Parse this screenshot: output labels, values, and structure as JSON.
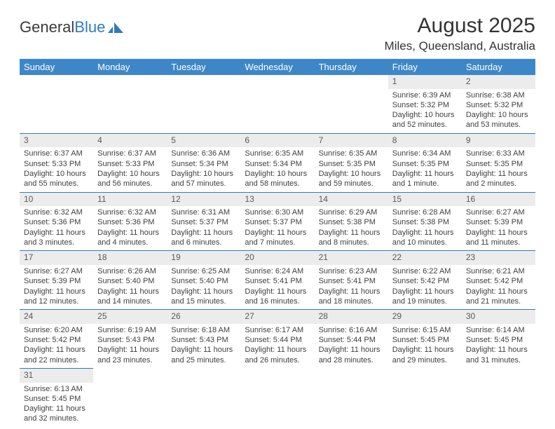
{
  "logo": {
    "part1": "General",
    "part2": "Blue"
  },
  "title": "August 2025",
  "location": "Miles, Queensland, Australia",
  "headers": [
    "Sunday",
    "Monday",
    "Tuesday",
    "Wednesday",
    "Thursday",
    "Friday",
    "Saturday"
  ],
  "colors": {
    "header_bg": "#3d87c9",
    "header_fg": "#ffffff",
    "daynum_bg": "#ececec",
    "divider": "#2f7bbf",
    "logo_blue": "#2f7bbf"
  },
  "weeks": [
    [
      null,
      null,
      null,
      null,
      null,
      {
        "n": "1",
        "sr": "Sunrise: 6:39 AM",
        "ss": "Sunset: 5:32 PM",
        "dl": "Daylight: 10 hours and 52 minutes."
      },
      {
        "n": "2",
        "sr": "Sunrise: 6:38 AM",
        "ss": "Sunset: 5:32 PM",
        "dl": "Daylight: 10 hours and 53 minutes."
      }
    ],
    [
      {
        "n": "3",
        "sr": "Sunrise: 6:37 AM",
        "ss": "Sunset: 5:33 PM",
        "dl": "Daylight: 10 hours and 55 minutes."
      },
      {
        "n": "4",
        "sr": "Sunrise: 6:37 AM",
        "ss": "Sunset: 5:33 PM",
        "dl": "Daylight: 10 hours and 56 minutes."
      },
      {
        "n": "5",
        "sr": "Sunrise: 6:36 AM",
        "ss": "Sunset: 5:34 PM",
        "dl": "Daylight: 10 hours and 57 minutes."
      },
      {
        "n": "6",
        "sr": "Sunrise: 6:35 AM",
        "ss": "Sunset: 5:34 PM",
        "dl": "Daylight: 10 hours and 58 minutes."
      },
      {
        "n": "7",
        "sr": "Sunrise: 6:35 AM",
        "ss": "Sunset: 5:35 PM",
        "dl": "Daylight: 10 hours and 59 minutes."
      },
      {
        "n": "8",
        "sr": "Sunrise: 6:34 AM",
        "ss": "Sunset: 5:35 PM",
        "dl": "Daylight: 11 hours and 1 minute."
      },
      {
        "n": "9",
        "sr": "Sunrise: 6:33 AM",
        "ss": "Sunset: 5:35 PM",
        "dl": "Daylight: 11 hours and 2 minutes."
      }
    ],
    [
      {
        "n": "10",
        "sr": "Sunrise: 6:32 AM",
        "ss": "Sunset: 5:36 PM",
        "dl": "Daylight: 11 hours and 3 minutes."
      },
      {
        "n": "11",
        "sr": "Sunrise: 6:32 AM",
        "ss": "Sunset: 5:36 PM",
        "dl": "Daylight: 11 hours and 4 minutes."
      },
      {
        "n": "12",
        "sr": "Sunrise: 6:31 AM",
        "ss": "Sunset: 5:37 PM",
        "dl": "Daylight: 11 hours and 6 minutes."
      },
      {
        "n": "13",
        "sr": "Sunrise: 6:30 AM",
        "ss": "Sunset: 5:37 PM",
        "dl": "Daylight: 11 hours and 7 minutes."
      },
      {
        "n": "14",
        "sr": "Sunrise: 6:29 AM",
        "ss": "Sunset: 5:38 PM",
        "dl": "Daylight: 11 hours and 8 minutes."
      },
      {
        "n": "15",
        "sr": "Sunrise: 6:28 AM",
        "ss": "Sunset: 5:38 PM",
        "dl": "Daylight: 11 hours and 10 minutes."
      },
      {
        "n": "16",
        "sr": "Sunrise: 6:27 AM",
        "ss": "Sunset: 5:39 PM",
        "dl": "Daylight: 11 hours and 11 minutes."
      }
    ],
    [
      {
        "n": "17",
        "sr": "Sunrise: 6:27 AM",
        "ss": "Sunset: 5:39 PM",
        "dl": "Daylight: 11 hours and 12 minutes."
      },
      {
        "n": "18",
        "sr": "Sunrise: 6:26 AM",
        "ss": "Sunset: 5:40 PM",
        "dl": "Daylight: 11 hours and 14 minutes."
      },
      {
        "n": "19",
        "sr": "Sunrise: 6:25 AM",
        "ss": "Sunset: 5:40 PM",
        "dl": "Daylight: 11 hours and 15 minutes."
      },
      {
        "n": "20",
        "sr": "Sunrise: 6:24 AM",
        "ss": "Sunset: 5:41 PM",
        "dl": "Daylight: 11 hours and 16 minutes."
      },
      {
        "n": "21",
        "sr": "Sunrise: 6:23 AM",
        "ss": "Sunset: 5:41 PM",
        "dl": "Daylight: 11 hours and 18 minutes."
      },
      {
        "n": "22",
        "sr": "Sunrise: 6:22 AM",
        "ss": "Sunset: 5:42 PM",
        "dl": "Daylight: 11 hours and 19 minutes."
      },
      {
        "n": "23",
        "sr": "Sunrise: 6:21 AM",
        "ss": "Sunset: 5:42 PM",
        "dl": "Daylight: 11 hours and 21 minutes."
      }
    ],
    [
      {
        "n": "24",
        "sr": "Sunrise: 6:20 AM",
        "ss": "Sunset: 5:42 PM",
        "dl": "Daylight: 11 hours and 22 minutes."
      },
      {
        "n": "25",
        "sr": "Sunrise: 6:19 AM",
        "ss": "Sunset: 5:43 PM",
        "dl": "Daylight: 11 hours and 23 minutes."
      },
      {
        "n": "26",
        "sr": "Sunrise: 6:18 AM",
        "ss": "Sunset: 5:43 PM",
        "dl": "Daylight: 11 hours and 25 minutes."
      },
      {
        "n": "27",
        "sr": "Sunrise: 6:17 AM",
        "ss": "Sunset: 5:44 PM",
        "dl": "Daylight: 11 hours and 26 minutes."
      },
      {
        "n": "28",
        "sr": "Sunrise: 6:16 AM",
        "ss": "Sunset: 5:44 PM",
        "dl": "Daylight: 11 hours and 28 minutes."
      },
      {
        "n": "29",
        "sr": "Sunrise: 6:15 AM",
        "ss": "Sunset: 5:45 PM",
        "dl": "Daylight: 11 hours and 29 minutes."
      },
      {
        "n": "30",
        "sr": "Sunrise: 6:14 AM",
        "ss": "Sunset: 5:45 PM",
        "dl": "Daylight: 11 hours and 31 minutes."
      }
    ],
    [
      {
        "n": "31",
        "sr": "Sunrise: 6:13 AM",
        "ss": "Sunset: 5:45 PM",
        "dl": "Daylight: 11 hours and 32 minutes."
      },
      null,
      null,
      null,
      null,
      null,
      null
    ]
  ]
}
